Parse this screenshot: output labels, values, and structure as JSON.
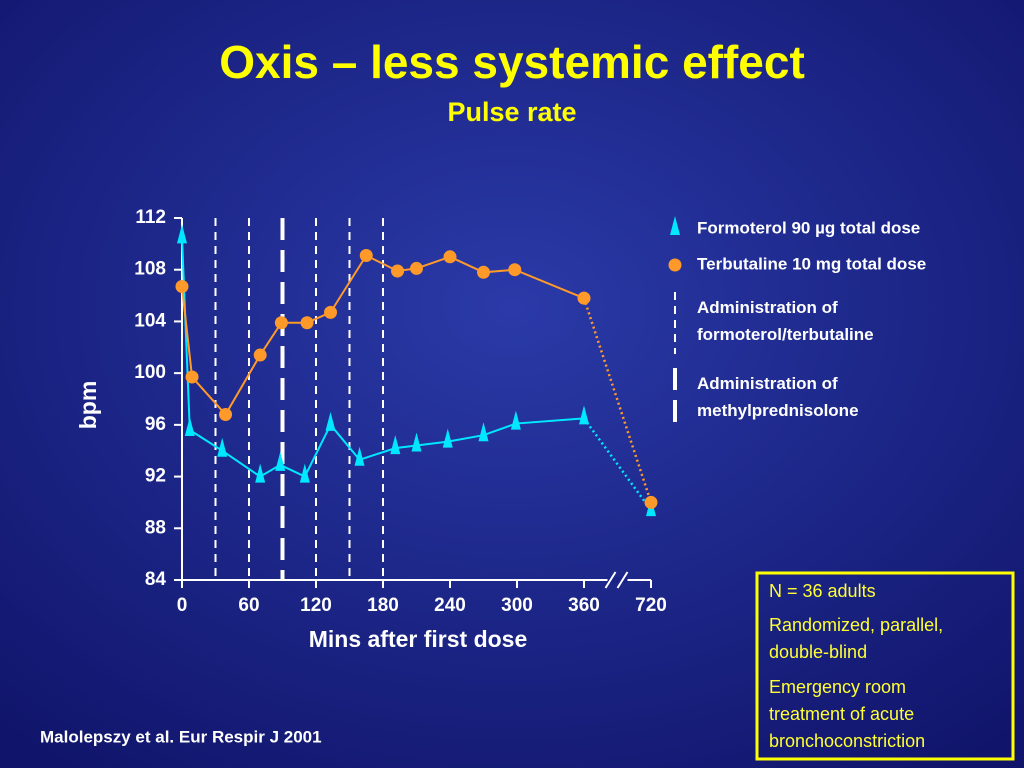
{
  "chart_data": {
    "type": "line",
    "title": "Oxis – less systemic effect",
    "subtitle": "Pulse rate",
    "xlabel": "Mins after first dose",
    "ylabel": "bpm",
    "xlim": [
      0,
      720
    ],
    "xbreak": [
      360,
      720
    ],
    "xticks": [
      0,
      60,
      120,
      180,
      240,
      300,
      360,
      720
    ],
    "ylim": [
      84,
      112
    ],
    "yticks": [
      84,
      88,
      92,
      96,
      100,
      104,
      108,
      112
    ],
    "series": [
      {
        "name": "Formoterol 90 µg total dose",
        "color": "#00e8ff",
        "marker": "triangle",
        "x": [
          0,
          7,
          36,
          70,
          88,
          110,
          133,
          159,
          191,
          210,
          238,
          270,
          299,
          360,
          720
        ],
        "values": [
          110.5,
          95.6,
          94,
          92,
          92.9,
          92,
          96,
          93.3,
          94.2,
          94.4,
          94.7,
          95.2,
          96.1,
          96.5,
          89.4
        ]
      },
      {
        "name": "Terbutaline 10 mg total dose",
        "color": "#ff9a2a",
        "marker": "circle",
        "x": [
          0,
          9,
          39,
          70,
          89,
          112,
          133,
          165,
          193,
          210,
          240,
          270,
          298,
          360,
          720
        ],
        "values": [
          106.7,
          99.7,
          96.8,
          101.4,
          103.9,
          103.9,
          104.7,
          109.1,
          107.9,
          108.1,
          109,
          107.8,
          108,
          105.8,
          90
        ]
      }
    ],
    "administration_lines": [
      {
        "name": "Administration of formoterol/terbutaline",
        "style": "thin",
        "x": [
          30,
          60,
          120,
          150,
          180
        ]
      },
      {
        "name": "Administration of methylprednisolone",
        "style": "thick",
        "x": [
          90
        ]
      }
    ],
    "citation": "Malolepszy et al. Eur Respir J 2001",
    "notes": [
      "N = 36 adults",
      "Randomized, parallel, double-blind",
      "Emergency room treatment of acute bronchoconstriction"
    ]
  }
}
